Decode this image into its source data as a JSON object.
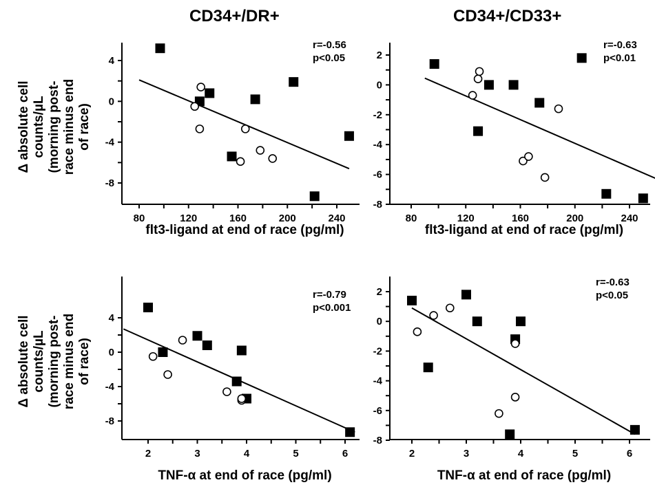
{
  "column_titles": [
    "CD34+/DR+",
    "CD34+/CD33+"
  ],
  "ylabel_lines": [
    "Δ absolute cell",
    "counts/µL",
    "(morning post-",
    "race minus end",
    "of race)"
  ],
  "colors": {
    "ink": "#000000",
    "background": "#ffffff"
  },
  "markers": {
    "filled": "filled-square",
    "open": "open-circle"
  },
  "chart_data": [
    {
      "type": "scatter",
      "title": "CD34+/DR+",
      "xlabel": "flt3-ligand at end of race (pg/ml)",
      "ylabel": "Δ absolute cell counts/µL (morning post-race minus end of race)",
      "xlim": [
        80,
        260
      ],
      "ylim": [
        -10,
        6
      ],
      "xticks": [
        80,
        120,
        160,
        200,
        240
      ],
      "yticks": [
        4,
        0,
        -4,
        -8
      ],
      "annotation": [
        "r=-0.56",
        "p<0.05"
      ],
      "filled_points": [
        [
          97,
          5.2
        ],
        [
          129,
          0.0
        ],
        [
          137,
          0.8
        ],
        [
          155,
          -5.4
        ],
        [
          174,
          0.2
        ],
        [
          205,
          1.9
        ],
        [
          222,
          -9.3
        ],
        [
          250,
          -3.4
        ]
      ],
      "open_points": [
        [
          125,
          -0.5
        ],
        [
          130,
          1.4
        ],
        [
          129,
          -2.7
        ],
        [
          162,
          -5.9
        ],
        [
          166,
          -2.7
        ],
        [
          178,
          -4.8
        ],
        [
          188,
          -5.6
        ]
      ],
      "fit_line": [
        [
          80,
          2.1
        ],
        [
          250,
          -6.6
        ]
      ]
    },
    {
      "type": "scatter",
      "title": "CD34+/CD33+",
      "xlabel": "flt3-ligand at end of race (pg/ml)",
      "ylabel": "",
      "xlim": [
        80,
        260
      ],
      "ylim": [
        -8,
        3
      ],
      "xticks": [
        80,
        120,
        160,
        200,
        240
      ],
      "yticks": [
        2,
        0,
        -2,
        -4,
        -6,
        -8
      ],
      "annotation": [
        "r=-0.63",
        "p<0.01"
      ],
      "filled_points": [
        [
          97,
          1.4
        ],
        [
          129,
          -3.1
        ],
        [
          137,
          0.0
        ],
        [
          155,
          0.0
        ],
        [
          174,
          -1.2
        ],
        [
          205,
          1.8
        ],
        [
          223,
          -7.3
        ],
        [
          250,
          -7.6
        ]
      ],
      "open_points": [
        [
          125,
          -0.7
        ],
        [
          129,
          0.4
        ],
        [
          130,
          0.9
        ],
        [
          162,
          -5.1
        ],
        [
          166,
          -4.8
        ],
        [
          178,
          -6.2
        ],
        [
          188,
          -1.6
        ]
      ],
      "fit_line": [
        [
          90,
          0.45
        ],
        [
          260,
          -6.3
        ]
      ]
    },
    {
      "type": "scatter",
      "title": "",
      "xlabel": "TNF-α at end of race (pg/ml)",
      "ylabel": "Δ absolute cell counts/µL (morning post-race minus end of race)",
      "xlim": [
        1.5,
        6.3
      ],
      "ylim": [
        -10,
        6
      ],
      "xticks": [
        2,
        3,
        4,
        5,
        6
      ],
      "yticks": [
        4,
        0,
        -4,
        -8
      ],
      "annotation": [
        "r=-0.79",
        "p<0.001"
      ],
      "filled_points": [
        [
          2.0,
          5.2
        ],
        [
          2.3,
          0.0
        ],
        [
          3.0,
          1.9
        ],
        [
          3.2,
          0.8
        ],
        [
          3.8,
          -3.4
        ],
        [
          3.9,
          0.2
        ],
        [
          4.0,
          -5.4
        ],
        [
          6.1,
          -9.3
        ]
      ],
      "open_points": [
        [
          2.1,
          -0.5
        ],
        [
          2.4,
          -2.6
        ],
        [
          2.7,
          1.4
        ],
        [
          3.6,
          -4.6
        ],
        [
          3.9,
          -5.6
        ],
        [
          3.9,
          -5.4
        ]
      ],
      "fit_line": [
        [
          1.5,
          2.7
        ],
        [
          6.2,
          -9.3
        ]
      ]
    },
    {
      "type": "scatter",
      "title": "",
      "xlabel": "TNF-α at end of race (pg/ml)",
      "ylabel": "",
      "xlim": [
        1.5,
        6.3
      ],
      "ylim": [
        -8,
        3
      ],
      "xticks": [
        2,
        3,
        4,
        5,
        6
      ],
      "yticks": [
        2,
        0,
        -2,
        -4,
        -6,
        -8
      ],
      "annotation": [
        "r=-0.63",
        "p<0.05"
      ],
      "filled_points": [
        [
          2.0,
          1.4
        ],
        [
          2.3,
          -3.1
        ],
        [
          3.0,
          1.8
        ],
        [
          3.2,
          0.0
        ],
        [
          3.9,
          -1.2
        ],
        [
          4.0,
          0.0
        ],
        [
          3.8,
          -7.6
        ],
        [
          6.1,
          -7.3
        ]
      ],
      "open_points": [
        [
          2.1,
          -0.7
        ],
        [
          2.4,
          0.4
        ],
        [
          2.7,
          0.9
        ],
        [
          3.9,
          -1.5
        ],
        [
          3.9,
          -5.1
        ],
        [
          3.6,
          -6.2
        ]
      ],
      "fit_line": [
        [
          2.0,
          0.9
        ],
        [
          6.1,
          -7.6
        ]
      ]
    }
  ]
}
